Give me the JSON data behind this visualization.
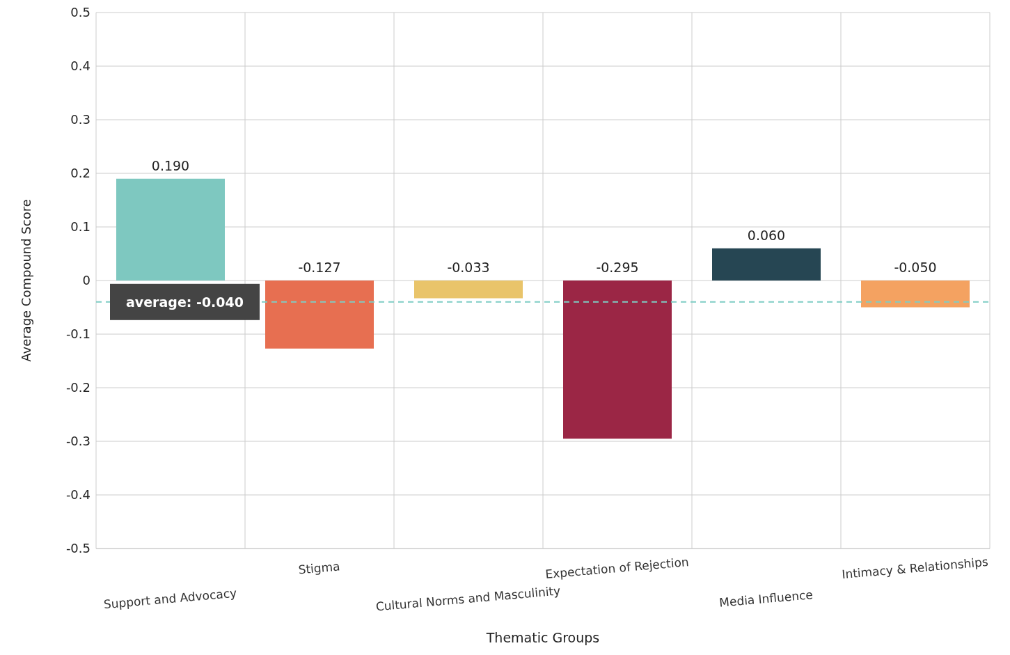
{
  "chart_data": {
    "type": "bar",
    "xlabel": "Thematic Groups",
    "ylabel": "Average Compound Score",
    "categories": [
      "Support and Advocacy",
      "Stigma",
      "Cultural Norms and Masculinity",
      "Expectation of Rejection",
      "Media Influence",
      "Intimacy & Relationships"
    ],
    "values": [
      0.19,
      -0.127,
      -0.033,
      -0.295,
      0.06,
      -0.05
    ],
    "value_labels": [
      "0.190",
      "-0.127",
      "-0.033",
      "-0.295",
      "0.060",
      "-0.050"
    ],
    "colors": [
      "#7ec8c0",
      "#e76f51",
      "#e9c46a",
      "#9b2645",
      "#264653",
      "#f4a261"
    ],
    "ylim": [
      -0.5,
      0.5
    ],
    "yticks": [
      -0.5,
      -0.4,
      -0.3,
      -0.2,
      -0.1,
      0,
      0.1,
      0.2,
      0.3,
      0.4,
      0.5
    ],
    "ref_lines": [
      {
        "axis": "y",
        "value": -0.04,
        "label": "average: -0.040",
        "color": "#7ecdc4",
        "line_style": "dashed"
      }
    ],
    "grid": true,
    "legend": false
  }
}
